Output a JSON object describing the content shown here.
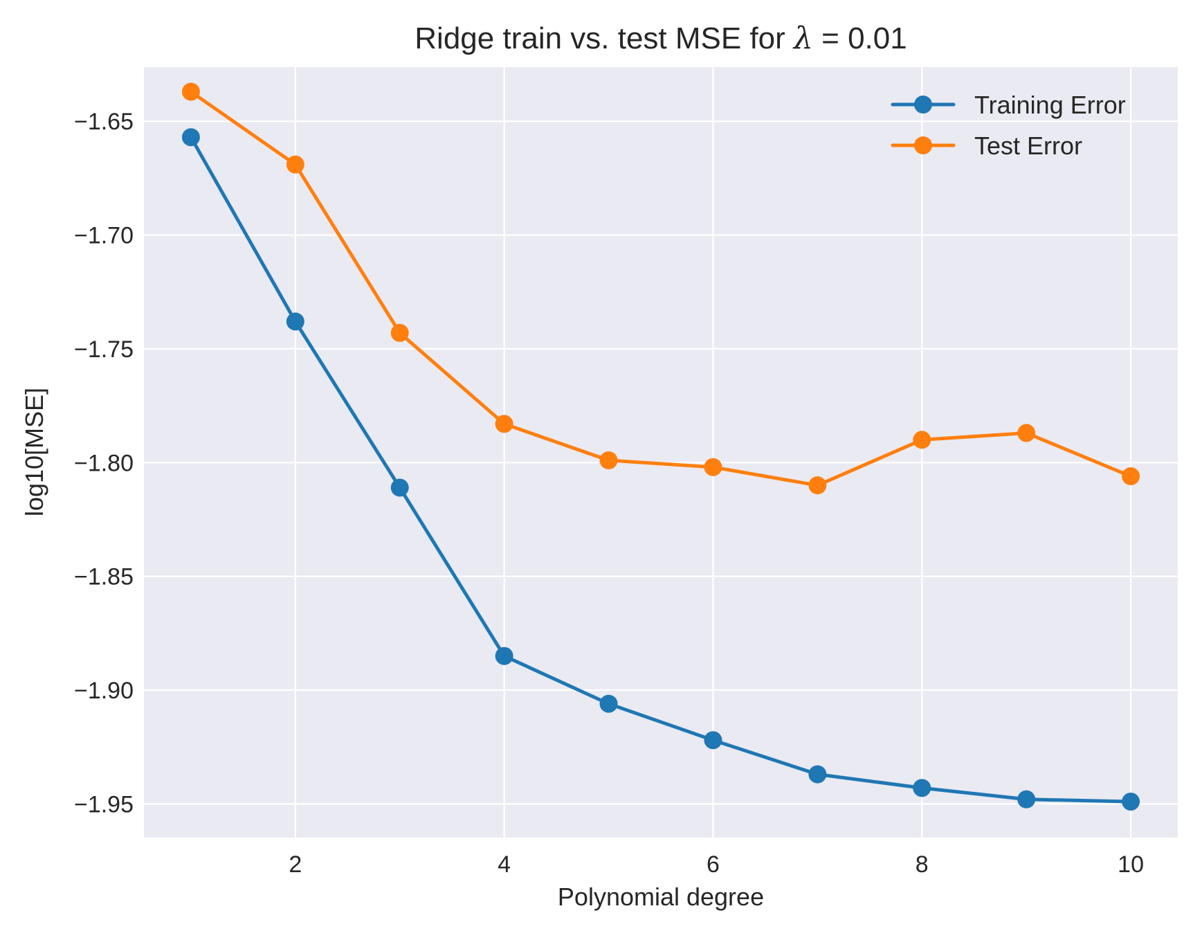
{
  "chart_data": {
    "type": "line",
    "title": "Ridge train vs. test MSE for λ =  0.01",
    "title_prefix": "Ridge train vs. test MSE for ",
    "title_symbol": "λ",
    "title_suffix": " =  0.01",
    "xlabel": "Polynomial degree",
    "ylabel": "log10[MSE]",
    "x": [
      1,
      2,
      3,
      4,
      5,
      6,
      7,
      8,
      9,
      10
    ],
    "xlim": [
      0.55,
      10.45
    ],
    "ylim": [
      -1.9648,
      -1.6262
    ],
    "xticks": [
      2,
      4,
      6,
      8,
      10
    ],
    "xtick_labels": [
      "2",
      "4",
      "6",
      "8",
      "10"
    ],
    "yticks": [
      -1.65,
      -1.7,
      -1.75,
      -1.8,
      -1.85,
      -1.9,
      -1.95
    ],
    "ytick_labels": [
      "−1.65",
      "−1.70",
      "−1.75",
      "−1.80",
      "−1.85",
      "−1.90",
      "−1.95"
    ],
    "grid": true,
    "legend_position": "top-right",
    "background": "#eaeaf2",
    "series": [
      {
        "name": "Training Error",
        "color": "#1f77b4",
        "marker": "circle",
        "values": [
          -1.657,
          -1.738,
          -1.811,
          -1.885,
          -1.906,
          -1.922,
          -1.937,
          -1.943,
          -1.948,
          -1.949
        ]
      },
      {
        "name": "Test Error",
        "color": "#ff7f0e",
        "marker": "circle",
        "values": [
          -1.637,
          -1.669,
          -1.743,
          -1.783,
          -1.799,
          -1.802,
          -1.81,
          -1.79,
          -1.787,
          -1.806
        ]
      }
    ]
  }
}
